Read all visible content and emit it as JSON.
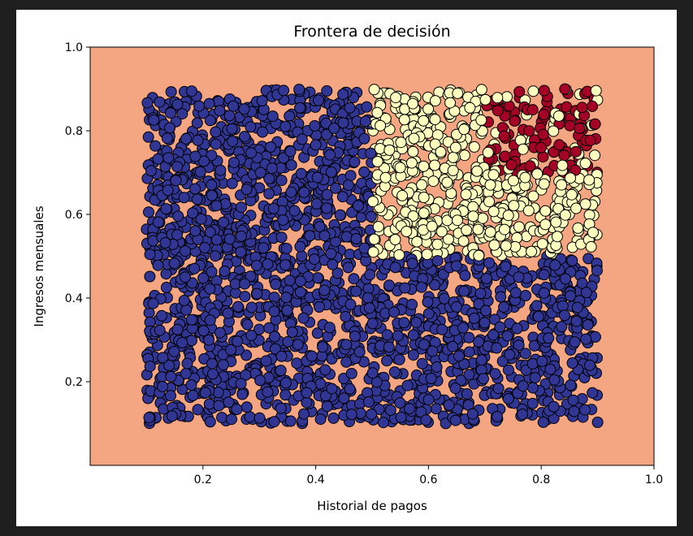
{
  "chart_data": {
    "type": "scatter",
    "title": "Frontera de decisión",
    "xlabel": "Historial de pagos",
    "ylabel": "Ingresos mensuales",
    "xlim": [
      0.0,
      1.0
    ],
    "ylim": [
      0.0,
      1.0
    ],
    "xticks": [
      "0.2",
      "0.4",
      "0.6",
      "0.8",
      "1.0"
    ],
    "yticks": [
      "0.2",
      "0.4",
      "0.6",
      "0.8",
      "1.0"
    ],
    "grid": false,
    "legend": "none",
    "background_region": {
      "color": "#f4a582",
      "x": [
        0.0,
        1.0
      ],
      "y": [
        0.0,
        1.0
      ]
    },
    "data_extent": {
      "x": [
        0.1,
        0.9
      ],
      "y": [
        0.1,
        0.9
      ]
    },
    "classes": [
      {
        "color": "#313695",
        "rule": "x < 0.5 or y < 0.5"
      },
      {
        "color": "#ffffbf",
        "rule": "x >= 0.5 and y >= 0.5, excluding upper-right region"
      },
      {
        "color": "#a50026",
        "rule": "x >= 0.7 and y >= 0.7 (mixed with light-yellow points)"
      }
    ],
    "point_count": 2600,
    "marker_edge_color": "#000000"
  }
}
